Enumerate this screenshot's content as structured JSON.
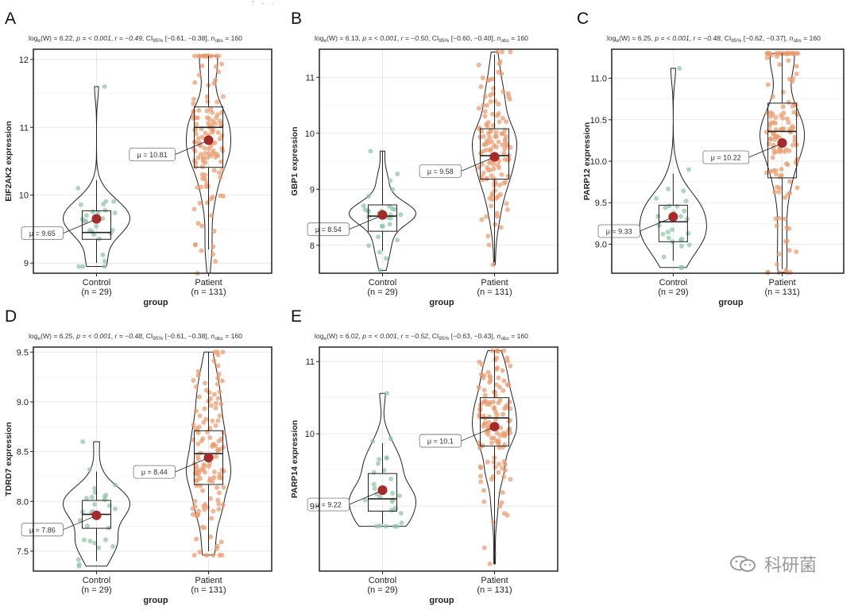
{
  "figure": {
    "top_fragment": "' · ·",
    "watermark_text": "科研菌",
    "colors": {
      "control_dot": "#8fc5a7",
      "patient_dot": "#ea9a6c",
      "mean_dot": "#a52a2a",
      "grid": "#e3e3e3",
      "frame": "#222222"
    }
  },
  "chart_data": [
    {
      "id": "A",
      "type": "violin-box",
      "panel_label": "A",
      "stats_text": {
        "log_label": "log",
        "log_sub": "e",
        "W": "(W) = 6.22",
        "p": "p = < 0.001",
        "r": "r = −0.49",
        "ci_label": "CI",
        "ci_sub": "95%",
        "ci": "[−0.61, −0.38]",
        "n_label": "n",
        "n_sub": "obs",
        "n": "= 160"
      },
      "ylabel": "EIF2AK2 expression",
      "xlabel": "group",
      "ylim": [
        8.85,
        12.15
      ],
      "yticks": [
        9,
        10,
        11,
        12
      ],
      "yticklabels": [
        "9",
        "10",
        "11",
        "12"
      ],
      "groups": [
        {
          "name": "Control",
          "n_label": "(n = 29)",
          "n": 29,
          "min": 8.95,
          "q1": 9.35,
          "median": 9.45,
          "q3": 9.77,
          "max": 11.6,
          "whisker_low": 9.0,
          "whisker_high": 10.22,
          "mean": 9.65,
          "mean_label": "μ = 9.65"
        },
        {
          "name": "Patient",
          "n_label": "(n = 131)",
          "n": 131,
          "min": 8.85,
          "q1": 10.41,
          "median": 11.0,
          "q3": 11.3,
          "max": 12.05,
          "whisker_low": 9.2,
          "whisker_high": 12.05,
          "mean": 10.81,
          "mean_label": "μ = 10.81"
        }
      ]
    },
    {
      "id": "B",
      "type": "violin-box",
      "panel_label": "B",
      "stats_text": {
        "log_label": "log",
        "log_sub": "e",
        "W": "(W) = 6.13",
        "p": "p = < 0.001",
        "r": "r = −0.50",
        "ci_label": "CI",
        "ci_sub": "95%",
        "ci": "[−0.60, −0.40]",
        "n_label": "n",
        "n_sub": "obs",
        "n": "= 160"
      },
      "ylabel": "GBP1 expression",
      "xlabel": "group",
      "ylim": [
        7.5,
        11.5
      ],
      "yticks": [
        8,
        9,
        10,
        11
      ],
      "yticklabels": [
        "8",
        "9",
        "10",
        "11"
      ],
      "groups": [
        {
          "name": "Control",
          "n_label": "(n = 29)",
          "n": 29,
          "min": 7.55,
          "q1": 8.25,
          "median": 8.52,
          "q3": 8.72,
          "max": 9.68,
          "whisker_low": 7.9,
          "whisker_high": 9.68,
          "mean": 8.54,
          "mean_label": "μ = 8.54"
        },
        {
          "name": "Patient",
          "n_label": "(n = 131)",
          "n": 131,
          "min": 7.65,
          "q1": 9.18,
          "median": 9.6,
          "q3": 10.08,
          "max": 11.45,
          "whisker_low": 7.7,
          "whisker_high": 11.4,
          "mean": 9.58,
          "mean_label": "μ = 9.58"
        }
      ]
    },
    {
      "id": "C",
      "type": "violin-box",
      "panel_label": "C",
      "stats_text": {
        "log_label": "log",
        "log_sub": "e",
        "W": "(W) = 6.25",
        "p": "p = < 0.001",
        "r": "r = −0.48",
        "ci_label": "CI",
        "ci_sub": "95%",
        "ci": "[−0.62, −0.37]",
        "n_label": "n",
        "n_sub": "obs",
        "n": "= 160"
      },
      "ylabel": "PARP12 expression",
      "xlabel": "group",
      "ylim": [
        8.65,
        11.35
      ],
      "yticks": [
        9.0,
        9.5,
        10.0,
        10.5,
        11.0
      ],
      "yticklabels": [
        "9.0",
        "9.5",
        "10.0",
        "10.5",
        "11.0"
      ],
      "groups": [
        {
          "name": "Control",
          "n_label": "(n = 29)",
          "n": 29,
          "min": 8.72,
          "q1": 9.03,
          "median": 9.27,
          "q3": 9.47,
          "max": 11.12,
          "whisker_low": 8.8,
          "whisker_high": 9.85,
          "mean": 9.33,
          "mean_label": "μ = 9.33"
        },
        {
          "name": "Patient",
          "n_label": "(n = 131)",
          "n": 131,
          "min": 8.66,
          "q1": 9.8,
          "median": 10.36,
          "q3": 10.7,
          "max": 11.3,
          "whisker_low": 8.7,
          "whisker_high": 11.3,
          "mean": 10.22,
          "mean_label": "μ = 10.22"
        }
      ]
    },
    {
      "id": "D",
      "type": "violin-box",
      "panel_label": "D",
      "stats_text": {
        "log_label": "log",
        "log_sub": "e",
        "W": "(W) = 6.25",
        "p": "p = < 0.001",
        "r": "r = −0.48",
        "ci_label": "CI",
        "ci_sub": "95%",
        "ci": "[−0.61, −0.38]",
        "n_label": "n",
        "n_sub": "obs",
        "n": "= 160"
      },
      "ylabel": "TDRD7 expression",
      "xlabel": "group",
      "ylim": [
        7.3,
        9.55
      ],
      "yticks": [
        7.5,
        8.0,
        8.5,
        9.0,
        9.5
      ],
      "yticklabels": [
        "7.5",
        "8.0",
        "8.5",
        "9.0",
        "9.5"
      ],
      "groups": [
        {
          "name": "Control",
          "n_label": "(n = 29)",
          "n": 29,
          "min": 7.35,
          "q1": 7.73,
          "median": 7.87,
          "q3": 8.01,
          "max": 8.6,
          "whisker_low": 7.4,
          "whisker_high": 8.3,
          "mean": 7.86,
          "mean_label": "μ = 7.86"
        },
        {
          "name": "Patient",
          "n_label": "(n = 131)",
          "n": 131,
          "min": 7.46,
          "q1": 8.17,
          "median": 8.48,
          "q3": 8.71,
          "max": 9.5,
          "whisker_low": 7.5,
          "whisker_high": 9.5,
          "mean": 8.44,
          "mean_label": "μ = 8.44"
        }
      ]
    },
    {
      "id": "E",
      "type": "violin-box",
      "panel_label": "E",
      "stats_text": {
        "log_label": "log",
        "log_sub": "e",
        "W": "(W) = 6.02",
        "p": "p = < 0.001",
        "r": "r = −0.52",
        "ci_label": "CI",
        "ci_sub": "95%",
        "ci": "[−0.63, −0.43]",
        "n_label": "n",
        "n_sub": "obs",
        "n": "= 160"
      },
      "ylabel": "PARP14 expression",
      "xlabel": "group",
      "ylim": [
        8.1,
        11.2
      ],
      "yticks": [
        9,
        10,
        11
      ],
      "yticklabels": [
        "9",
        "10",
        "11"
      ],
      "groups": [
        {
          "name": "Control",
          "n_label": "(n = 29)",
          "n": 29,
          "min": 8.72,
          "q1": 8.93,
          "median": 9.1,
          "q3": 9.45,
          "max": 10.56,
          "whisker_low": 8.75,
          "whisker_high": 9.87,
          "mean": 9.22,
          "mean_label": "μ = 9.22"
        },
        {
          "name": "Patient",
          "n_label": "(n = 131)",
          "n": 131,
          "min": 8.2,
          "q1": 9.83,
          "median": 10.22,
          "q3": 10.5,
          "max": 11.15,
          "whisker_low": 8.2,
          "whisker_high": 11.15,
          "mean": 10.1,
          "mean_label": "μ = 10.1"
        }
      ]
    }
  ]
}
